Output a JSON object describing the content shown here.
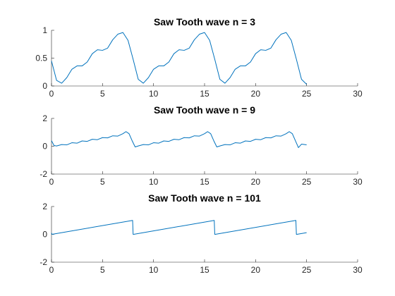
{
  "chart_data": [
    {
      "type": "line",
      "title": "Saw Tooth wave n = 3",
      "xlim": [
        0,
        30
      ],
      "ylim": [
        0,
        1
      ],
      "xticks": [
        0,
        5,
        10,
        15,
        20,
        25,
        30
      ],
      "yticks": [
        0,
        0.5,
        1
      ],
      "xtick_labels": [
        "0",
        "5",
        "10",
        "15",
        "20",
        "25",
        "30"
      ],
      "ytick_labels": [
        "0",
        "0.5",
        "1"
      ],
      "grid": false,
      "series": [
        {
          "color": "#0072bd",
          "x": [
            0,
            0.5,
            1,
            1.5,
            2,
            2.5,
            3,
            3.5,
            4,
            4.5,
            5,
            5.5,
            6,
            6.5,
            7,
            7.5,
            8,
            8.5,
            9,
            9.5,
            10,
            10.5,
            11,
            11.5,
            12,
            12.5,
            13,
            13.5,
            14,
            14.5,
            15,
            15.5,
            16,
            16.5,
            17,
            17.5,
            18,
            18.5,
            19,
            19.5,
            20,
            20.5,
            21,
            21.5,
            22,
            22.5,
            23,
            23.5,
            24,
            24.5,
            25
          ],
          "y": [
            0.45,
            0.1,
            0.05,
            0.15,
            0.3,
            0.36,
            0.36,
            0.43,
            0.58,
            0.65,
            0.64,
            0.68,
            0.83,
            0.93,
            0.96,
            0.82,
            0.48,
            0.12,
            0.05,
            0.15,
            0.3,
            0.36,
            0.36,
            0.43,
            0.58,
            0.65,
            0.64,
            0.68,
            0.83,
            0.93,
            0.96,
            0.82,
            0.48,
            0.12,
            0.05,
            0.15,
            0.3,
            0.36,
            0.36,
            0.43,
            0.58,
            0.65,
            0.64,
            0.68,
            0.83,
            0.93,
            0.96,
            0.82,
            0.48,
            0.12,
            0.03
          ]
        }
      ]
    },
    {
      "type": "line",
      "title": "Saw Tooth wave n = 9",
      "xlim": [
        0,
        30
      ],
      "ylim": [
        -2,
        2
      ],
      "xticks": [
        0,
        5,
        10,
        15,
        20,
        25,
        30
      ],
      "yticks": [
        -2,
        0,
        2
      ],
      "xtick_labels": [
        "0",
        "5",
        "10",
        "15",
        "20",
        "25",
        "30"
      ],
      "ytick_labels": [
        "-2",
        "0",
        "2"
      ],
      "grid": false,
      "series": [
        {
          "color": "#0072bd",
          "x": [
            0,
            0.25,
            0.5,
            1,
            1.5,
            2,
            2.5,
            3,
            3.5,
            4,
            4.5,
            5,
            5.5,
            6,
            6.5,
            7,
            7.3,
            7.6,
            7.9,
            8.2,
            8.5,
            9,
            9.5,
            10,
            10.5,
            11,
            11.5,
            12,
            12.5,
            13,
            13.5,
            14,
            14.5,
            15,
            15.3,
            15.6,
            15.9,
            16.2,
            16.5,
            17,
            17.5,
            18,
            18.5,
            19,
            19.5,
            20,
            20.5,
            21,
            21.5,
            22,
            22.5,
            23,
            23.3,
            23.6,
            23.9,
            24.2,
            24.5,
            25
          ],
          "y": [
            0.4,
            0.05,
            0.02,
            0.12,
            0.1,
            0.25,
            0.22,
            0.38,
            0.35,
            0.5,
            0.47,
            0.62,
            0.6,
            0.75,
            0.73,
            0.9,
            1.05,
            0.9,
            0.4,
            -0.05,
            0.02,
            0.12,
            0.1,
            0.25,
            0.22,
            0.38,
            0.35,
            0.5,
            0.47,
            0.62,
            0.6,
            0.75,
            0.73,
            0.9,
            1.05,
            0.9,
            0.4,
            -0.05,
            0.02,
            0.12,
            0.1,
            0.25,
            0.22,
            0.38,
            0.35,
            0.5,
            0.47,
            0.62,
            0.6,
            0.75,
            0.73,
            0.9,
            1.05,
            0.9,
            0.4,
            -0.1,
            0.15,
            0.1
          ]
        }
      ]
    },
    {
      "type": "line",
      "title": "Saw Tooth wave n = 101",
      "xlim": [
        0,
        30
      ],
      "ylim": [
        -2,
        2
      ],
      "xticks": [
        0,
        5,
        10,
        15,
        20,
        25,
        30
      ],
      "yticks": [
        -2,
        0,
        2
      ],
      "xtick_labels": [
        "0",
        "5",
        "10",
        "15",
        "20",
        "25",
        "30"
      ],
      "ytick_labels": [
        "-2",
        "0",
        "2"
      ],
      "grid": false,
      "series": [
        {
          "color": "#0072bd",
          "x": [
            0,
            0.05,
            7.95,
            8.0,
            8.05,
            15.95,
            16.0,
            16.05,
            23.95,
            24.0,
            24.05,
            25.0
          ],
          "y": [
            0.1,
            0.0,
            1.0,
            0.0,
            0.0,
            1.0,
            0.0,
            0.0,
            1.0,
            0.0,
            0.0,
            0.12
          ]
        }
      ]
    }
  ]
}
